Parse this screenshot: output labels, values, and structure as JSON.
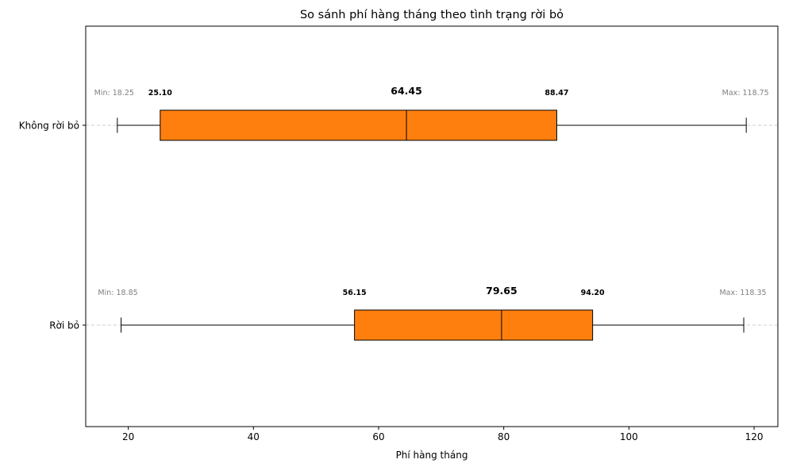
{
  "chart_data": {
    "type": "boxplot",
    "orientation": "horizontal",
    "title": "So sánh phí hàng tháng theo tình trạng rời bỏ",
    "xlabel": "Phí hàng tháng",
    "ylabel": "",
    "xlim": [
      13.2,
      123.8
    ],
    "xticks": [
      20,
      40,
      60,
      80,
      100,
      120
    ],
    "grid": "y-dashed",
    "box_color": "#ff7f0e",
    "groups": [
      {
        "name": "Không rời bỏ",
        "min": 18.25,
        "q1": 25.1,
        "median": 64.45,
        "q3": 88.47,
        "max": 118.75,
        "min_label": "Min: 18.25",
        "q1_label": "25.10",
        "median_label": "64.45",
        "q3_label": "88.47",
        "max_label": "Max: 118.75"
      },
      {
        "name": "Rời bỏ",
        "min": 18.85,
        "q1": 56.15,
        "median": 79.65,
        "q3": 94.2,
        "max": 118.35,
        "min_label": "Min: 18.85",
        "q1_label": "56.15",
        "median_label": "79.65",
        "q3_label": "94.20",
        "max_label": "Max: 118.35"
      }
    ]
  }
}
